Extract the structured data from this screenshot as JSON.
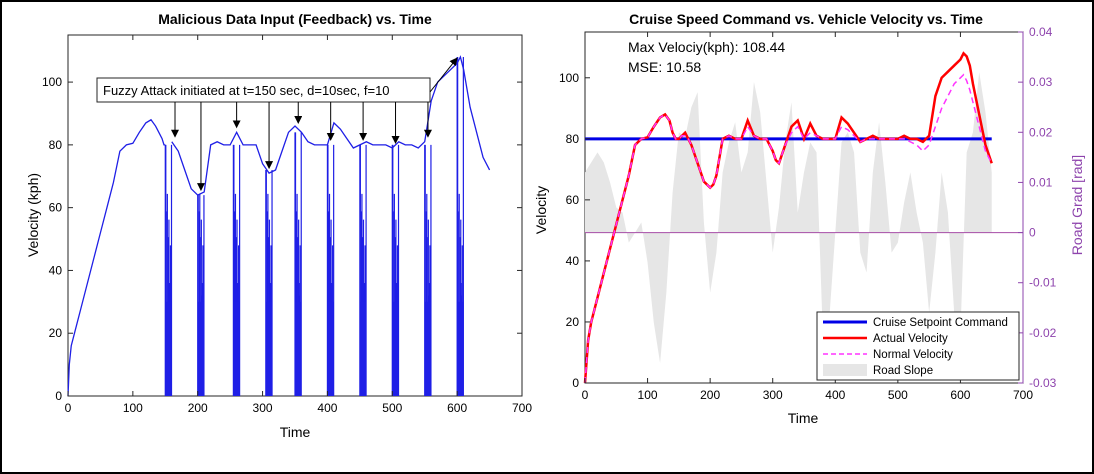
{
  "chart_data": [
    {
      "type": "line",
      "title": "Malicious Data Input (Feedback) vs. Time",
      "xlabel": "Time",
      "ylabel": "Velocity (kph)",
      "xlim": [
        0,
        700
      ],
      "ylim": [
        0,
        115
      ],
      "xticks": [
        "0",
        "100",
        "200",
        "300",
        "400",
        "500",
        "600",
        "700"
      ],
      "yticks": [
        "0",
        "20",
        "40",
        "60",
        "80",
        "100"
      ],
      "grid": false,
      "series": [
        {
          "color": "#1f1fe6",
          "x": [
            0,
            2,
            5,
            10,
            20,
            30,
            40,
            50,
            60,
            70,
            80,
            90,
            100,
            110,
            120,
            128,
            135,
            140,
            145,
            148,
            150
          ],
          "y": [
            0,
            10,
            16,
            20,
            28,
            36,
            44,
            52,
            60,
            68,
            78,
            80,
            80.5,
            84,
            87,
            88,
            86,
            84,
            82,
            80,
            80
          ]
        }
      ],
      "attack_spikes": [
        {
          "t": 150,
          "d": 10,
          "min": 0,
          "max": 80
        },
        {
          "t": 200,
          "d": 10,
          "min": 0,
          "max": 64
        },
        {
          "t": 255,
          "d": 10,
          "min": 0,
          "max": 80
        },
        {
          "t": 305,
          "d": 10,
          "min": 0,
          "max": 72
        },
        {
          "t": 350,
          "d": 10,
          "min": 0,
          "max": 84
        },
        {
          "t": 400,
          "d": 10,
          "min": 0,
          "max": 80
        },
        {
          "t": 450,
          "d": 10,
          "min": 0,
          "max": 80
        },
        {
          "t": 500,
          "d": 10,
          "min": 0,
          "max": 80
        },
        {
          "t": 550,
          "d": 10,
          "min": 0,
          "max": 80
        },
        {
          "t": 600,
          "d": 10,
          "min": 0,
          "max": 108
        }
      ],
      "post_attack": {
        "x": [
          160,
          170,
          180,
          190,
          200,
          210,
          220,
          230,
          240,
          250,
          260,
          270,
          280,
          290,
          300,
          310,
          320,
          330,
          340,
          350,
          360,
          370,
          380,
          390,
          400,
          410,
          420,
          430,
          440,
          450,
          460,
          470,
          480,
          490,
          500,
          510,
          520,
          530,
          540,
          550,
          560,
          570,
          580,
          590,
          600,
          605,
          610,
          615,
          620,
          630,
          640,
          650
        ],
        "y": [
          81,
          78,
          72,
          66,
          64,
          65,
          80,
          81,
          80,
          80,
          84,
          80,
          80,
          80,
          74,
          71,
          72,
          78,
          84,
          86,
          84,
          81,
          80,
          80,
          80,
          87,
          85,
          82,
          79,
          80,
          81,
          80,
          80,
          80,
          79,
          81,
          80,
          80,
          79,
          81,
          94,
          100,
          102,
          104,
          106,
          108,
          104,
          98,
          92,
          84,
          76,
          72
        ]
      },
      "annotation": "Fuzzy Attack initiated at t=150 sec, d=10sec, f=10",
      "arrow_targets_x": [
        165,
        205,
        260,
        310,
        355,
        405,
        455,
        505,
        555
      ],
      "arrow_final_x": 605
    },
    {
      "type": "line",
      "title": "Cruise Speed Command vs. Vehicle Velocity vs. Time",
      "xlabel": "Time",
      "ylabel": "Velocity",
      "y2label": "Road Grad [rad]",
      "xlim": [
        0,
        700
      ],
      "ylim": [
        0,
        115
      ],
      "y2lim": [
        -0.03,
        0.04
      ],
      "xticks": [
        "0",
        "100",
        "200",
        "300",
        "400",
        "500",
        "600",
        "700"
      ],
      "yticks": [
        "0",
        "20",
        "40",
        "60",
        "80",
        "100"
      ],
      "y2ticks": [
        "-0.03",
        "-0.02",
        "-0.01",
        "0",
        "0.01",
        "0.02",
        "0.03",
        "0.04"
      ],
      "grid": false,
      "legend_position": "bottom-right",
      "annotations": [
        "Max Velociy(kph): 108.44",
        "MSE: 10.58"
      ],
      "series": [
        {
          "name": "Cruise Setpoint Command",
          "color": "#0000e6",
          "x": [
            0,
            650
          ],
          "y": [
            80,
            80
          ]
        },
        {
          "name": "Actual Velocity",
          "color": "#ff0000",
          "x": [
            0,
            5,
            10,
            20,
            30,
            40,
            50,
            60,
            70,
            80,
            90,
            100,
            110,
            120,
            128,
            135,
            140,
            145,
            150,
            155,
            160,
            165,
            170,
            180,
            190,
            200,
            205,
            210,
            220,
            230,
            240,
            250,
            260,
            270,
            280,
            290,
            300,
            305,
            310,
            320,
            330,
            340,
            350,
            360,
            370,
            380,
            390,
            400,
            410,
            420,
            430,
            440,
            450,
            460,
            470,
            480,
            490,
            500,
            510,
            520,
            530,
            540,
            550,
            560,
            570,
            580,
            590,
            600,
            605,
            610,
            615,
            620,
            630,
            640,
            650
          ],
          "y": [
            0,
            14,
            20,
            28,
            36,
            44,
            52,
            60,
            68,
            78,
            80,
            80.5,
            84,
            87,
            88,
            86,
            82,
            80,
            80,
            81,
            82,
            80,
            78,
            72,
            66,
            64,
            65,
            68,
            80,
            81,
            80,
            80,
            86,
            81,
            80,
            80,
            76,
            73,
            72,
            78,
            84,
            86,
            80,
            85,
            81,
            80,
            80,
            80,
            87,
            85,
            82,
            79,
            80,
            81,
            80,
            80,
            80,
            80,
            81,
            80,
            80,
            79,
            81,
            94,
            100,
            102,
            104,
            106,
            108,
            107,
            104,
            98,
            88,
            78,
            72
          ]
        },
        {
          "name": "Normal Velocity",
          "color": "#ff33ff",
          "x": [
            0,
            5,
            10,
            20,
            30,
            40,
            50,
            60,
            70,
            80,
            90,
            100,
            110,
            120,
            128,
            135,
            140,
            145,
            150,
            155,
            160,
            165,
            170,
            180,
            190,
            200,
            205,
            210,
            220,
            230,
            240,
            250,
            260,
            270,
            280,
            290,
            300,
            305,
            310,
            320,
            330,
            340,
            350,
            360,
            370,
            380,
            390,
            400,
            410,
            420,
            430,
            440,
            450,
            460,
            470,
            480,
            490,
            500,
            510,
            520,
            530,
            540,
            550,
            560,
            570,
            580,
            590,
            600,
            605,
            610,
            615,
            620,
            630,
            640,
            650
          ],
          "y": [
            0,
            14,
            20,
            28,
            36,
            44,
            52,
            60,
            68,
            78,
            80,
            80.5,
            84,
            87,
            88,
            86,
            82,
            80,
            80,
            81,
            81,
            80,
            78,
            72,
            66,
            64,
            65,
            68,
            80,
            81,
            80,
            80,
            84,
            81,
            80,
            80,
            76,
            73,
            72,
            78,
            82,
            84,
            80,
            82,
            81,
            80,
            80,
            80,
            84,
            83,
            81,
            79,
            80,
            80,
            80,
            80,
            80,
            80,
            80,
            79,
            78,
            76,
            78,
            84,
            90,
            94,
            98,
            100,
            101,
            99,
            96,
            92,
            84,
            76,
            72
          ]
        },
        {
          "name": "Road Slope",
          "color": "#e6e6e6",
          "axis": "y2",
          "x": [
            0,
            10,
            20,
            30,
            40,
            50,
            60,
            70,
            80,
            90,
            100,
            110,
            120,
            130,
            140,
            150,
            160,
            170,
            180,
            190,
            200,
            210,
            220,
            230,
            240,
            250,
            260,
            270,
            280,
            290,
            300,
            310,
            320,
            330,
            340,
            350,
            360,
            370,
            380,
            390,
            400,
            410,
            420,
            430,
            440,
            450,
            460,
            470,
            480,
            490,
            500,
            510,
            520,
            530,
            540,
            550,
            560,
            570,
            580,
            590,
            600,
            610,
            620,
            630,
            640,
            650
          ],
          "y": [
            0.012,
            0.014,
            0.016,
            0.014,
            0.01,
            0.005,
            0.004,
            -0.002,
            0.0,
            0.002,
            -0.006,
            -0.018,
            -0.026,
            -0.012,
            0.008,
            0.02,
            0.019,
            0.025,
            0.028,
            0.002,
            -0.012,
            -0.004,
            0.012,
            0.018,
            0.022,
            0.012,
            0.016,
            0.03,
            0.024,
            0.01,
            -0.004,
            0.005,
            0.018,
            0.026,
            0.004,
            0.012,
            0.018,
            0.016,
            -0.02,
            -0.018,
            0.0,
            0.018,
            0.02,
            0.016,
            -0.004,
            -0.008,
            0.012,
            0.022,
            0.01,
            -0.004,
            -0.002,
            0.006,
            0.012,
            0.004,
            -0.002,
            -0.016,
            -0.004,
            0.012,
            0.004,
            -0.016,
            -0.02,
            0.016,
            0.02,
            0.032,
            0.024,
            0.012
          ]
        }
      ]
    }
  ]
}
